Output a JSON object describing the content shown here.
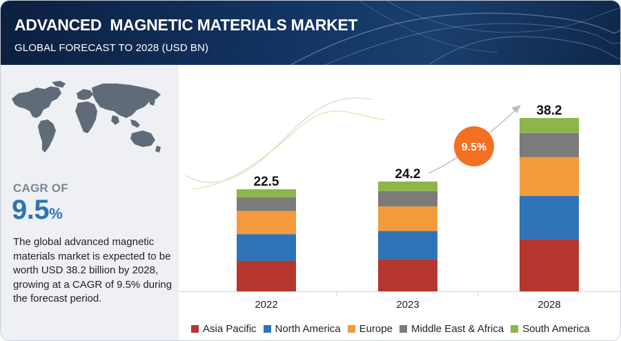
{
  "header": {
    "title": "ADVANCED  MAGNETIC MATERIALS MARKET",
    "subtitle": "GLOBAL FORECAST TO 2028 (USD BN)"
  },
  "summary": {
    "cagr_label": "CAGR OF",
    "cagr_value": "9.5",
    "cagr_unit": "%",
    "description": "The global advanced magnetic materials market is expected to be worth USD 38.2 billion by 2028, growing at a CAGR of 9.5% during the forecast period."
  },
  "chart_data": {
    "type": "bar",
    "stacked": true,
    "title": "ADVANCED  MAGNETIC MATERIALS MARKET",
    "subtitle": "GLOBAL FORECAST TO 2028 (USD BN)",
    "categories": [
      "2022",
      "2023",
      "2028"
    ],
    "totals": [
      "22.5",
      "24.2",
      "38.2"
    ],
    "series": [
      {
        "name": "Asia Pacific",
        "color": "#b5362e",
        "values": [
          6.7,
          7.1,
          11.5
        ]
      },
      {
        "name": "North America",
        "color": "#2f73b8",
        "values": [
          5.9,
          6.2,
          9.5
        ]
      },
      {
        "name": "Europe",
        "color": "#f39a3d",
        "values": [
          5.1,
          5.4,
          8.6
        ]
      },
      {
        "name": "Middle East & Africa",
        "color": "#7b7b7b",
        "values": [
          3.0,
          3.4,
          5.3
        ]
      },
      {
        "name": "South America",
        "color": "#8cb64a",
        "values": [
          1.8,
          2.1,
          3.3
        ]
      }
    ],
    "cagr_badge": "9.5%",
    "badge_color": "#f36f21",
    "legend_position": "bottom"
  }
}
